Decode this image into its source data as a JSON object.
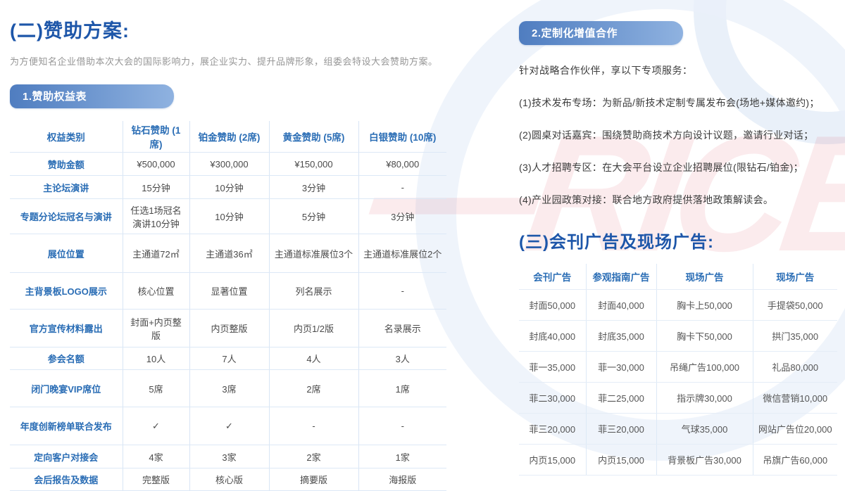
{
  "page": {
    "section2_title": "(二)赞助方案:",
    "section2_desc": "为方便知名企业借助本次大会的国际影响力，展企业实力、提升品牌形象，组委会特设大会赞助方案。",
    "badge1": "1.赞助权益表",
    "badge2": "2.定制化增值合作",
    "section3_title": "(三)会刊广告及现场广告:"
  },
  "benefits_table": {
    "headers": [
      "权益类别",
      "钻石赞助 (1席)",
      "铂金赞助 (2席)",
      "黄金赞助 (5席)",
      "白银赞助 (10席)"
    ],
    "rows": [
      [
        "赞助金额",
        "¥500,000",
        "¥300,000",
        "¥150,000",
        "¥80,000"
      ],
      [
        "主论坛演讲",
        "15分钟",
        "10分钟",
        "3分钟",
        "-"
      ],
      [
        "专题分论坛冠名与演讲",
        "任选1场冠名演讲10分钟",
        "10分钟",
        "5分钟",
        "3分钟"
      ],
      [
        "展位位置",
        "主通道72㎡",
        "主通道36㎡",
        "主通道标准展位3个",
        "主通道标准展位2个"
      ],
      [
        "主背景板LOGO展示",
        "核心位置",
        "显著位置",
        "列名展示",
        "-"
      ],
      [
        "官方宣传材料露出",
        "封面+内页整版",
        "内页整版",
        "内页1/2版",
        "名录展示"
      ],
      [
        "参会名额",
        "10人",
        "7人",
        "4人",
        "3人"
      ],
      [
        "闭门晚宴VIP席位",
        "5席",
        "3席",
        "2席",
        "1席"
      ],
      [
        "年度创新榜单联合发布",
        "✓",
        "✓",
        "-",
        "-"
      ],
      [
        "定向客户对接会",
        "4家",
        "3家",
        "2家",
        "1家"
      ],
      [
        "会后报告及数据",
        "完整版",
        "核心版",
        "摘要版",
        "海报版"
      ]
    ]
  },
  "custom_services": {
    "intro": "针对战略合作伙伴，享以下专项服务：",
    "items": [
      "(1)技术发布专场：为新品/新技术定制专属发布会(场地+媒体邀约)；",
      "(2)圆桌对话嘉宾：围绕赞助商技术方向设计议题，邀请行业对话；",
      "(3)人才招聘专区：在大会平台设立企业招聘展位(限钻石/铂金)；",
      "(4)产业园政策对接：联合地方政府提供落地政策解读会。"
    ]
  },
  "ads_table": {
    "headers": [
      "会刊广告",
      "参观指南广告",
      "现场广告",
      "现场广告"
    ],
    "rows": [
      [
        "封面50,000",
        "封面40,000",
        "胸卡上50,000",
        "手提袋50,000"
      ],
      [
        "封底40,000",
        "封底35,000",
        "胸卡下50,000",
        "拱门35,000"
      ],
      [
        "菲一35,000",
        "菲一30,000",
        "吊绳广告100,000",
        "礼品80,000"
      ],
      [
        "菲二30,000",
        "菲二25,000",
        "指示牌30,000",
        "微信营销10,000"
      ],
      [
        "菲三20,000",
        "菲三20,000",
        "气球35,000",
        "网站广告位20,000"
      ],
      [
        "内页15,000",
        "内页15,000",
        "背景板广告30,000",
        "吊旗广告60,000"
      ]
    ]
  },
  "watermark": {
    "text": "—RICE—"
  },
  "colors": {
    "accent_blue": "#1d56a9",
    "table_label_blue": "#2a6db5",
    "badge_gradient_start": "#4f7dc0",
    "badge_gradient_end": "#8fb2e0",
    "watermark_red": "#d7233c",
    "divider_blue": "#dce8f6"
  }
}
